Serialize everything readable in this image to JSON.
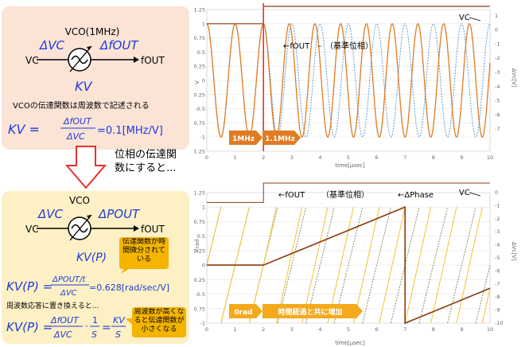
{
  "panel_top": {
    "vco_title": "VCO(1MHz)",
    "in_delta": "ΔVC",
    "out_delta": "ΔfOUT",
    "in_label": "VC",
    "out_label": "fOUT",
    "gain_symbol": "KV",
    "description": "VCOの伝達関数は周波数で記述される",
    "formula_lhs": "KV =",
    "formula_num": "ΔfOUT",
    "formula_den": "ΔVC",
    "formula_value": "=0.1[MHz/V]"
  },
  "middle": {
    "arrow_text": "位相の伝達関数にすると..."
  },
  "panel_bottom": {
    "vco_title": "VCO",
    "in_delta": "ΔVC",
    "out_delta": "ΔPOUT",
    "in_label": "VC",
    "out_label": "fOUT",
    "gain_symbol": "KV(P)",
    "callout_1": "伝達関数が時間微分されている",
    "formula1_lhs": "KV(P) =",
    "formula1_num": "ΔPOUT/t",
    "formula1_den": "ΔVC",
    "formula1_value": "=0.628[rad/sec/V]",
    "laplace_text": "周波数応答に置き換えると...",
    "formula2_lhs": "KV(P) =",
    "formula2_num": "ΔfOUT",
    "formula2_den": "ΔVC",
    "formula2_mid_num": "1",
    "formula2_mid_den": "S",
    "formula2_rhs_num": "KV",
    "formula2_rhs_den": "S",
    "callout_2": "周波数が高くなると伝達関数が小さくなる"
  },
  "chart_top": {
    "ylabel_left": "V",
    "ylabel_right": "ΔVc[V]",
    "xlabel": "time[μsec]",
    "left_ticks": [
      "1.25",
      "1",
      "0.75",
      "0.5",
      "0.25",
      "0",
      "-0.25",
      "-0.5",
      "-0.75",
      "-1",
      "-1.25"
    ],
    "right_ticks": [
      "1",
      "0",
      "-1",
      "-2",
      "-3",
      "-4",
      "-5",
      "-6",
      "-7"
    ],
    "x_ticks": [
      "0",
      "1",
      "2",
      "3",
      "4",
      "5",
      "6",
      "7",
      "8",
      "9",
      "10"
    ],
    "legend_fout": "fOUT",
    "legend_ref": "（基準位相）",
    "vc_label": "VC",
    "arrow1": "1MHz",
    "arrow2": "1.1MHz"
  },
  "chart_bottom": {
    "ylabel_left": "×rad",
    "ylabel_right": "ΔVc[V]",
    "xlabel": "time[μsec]",
    "left_ticks": [
      "1.25",
      "1",
      "0.75",
      "0.5",
      "0.25",
      "0",
      "-0.25",
      "-0.5",
      "-0.75",
      "-1"
    ],
    "right_ticks": [
      "0",
      "-1",
      "-2",
      "-3",
      "-4",
      "-5",
      "-6",
      "-7",
      "-8",
      "-9",
      "-10"
    ],
    "x_ticks": [
      "0",
      "1",
      "2",
      "3",
      "4",
      "5",
      "6",
      "7",
      "8",
      "9",
      "10"
    ],
    "legend_fout": "fOUT",
    "legend_ref": "（基準位相）",
    "legend_phase": "ΔPhase",
    "vc_label": "VC",
    "arrow1": "0rad",
    "arrow2": "時間経過と共に増加"
  },
  "colors": {
    "orange": "#e07b22",
    "blue": "#5b9bd5",
    "yellow": "#f3c331",
    "red": "#e8332a",
    "brown": "#8b3a0f",
    "olive": "#8a7a3a",
    "formula_blue": "#1f3ad8"
  },
  "chart_data": [
    {
      "type": "line",
      "title": "",
      "xlabel": "time[μsec]",
      "ylabel": "V",
      "xlim": [
        0,
        10
      ],
      "ylim": [
        -1.25,
        1.25
      ],
      "series": [
        {
          "name": "fOUT",
          "frequency_mhz_before": 1.0,
          "frequency_mhz_after": 1.1,
          "switch_time_usec": 2
        },
        {
          "name": "（基準位相）",
          "frequency_mhz": 1.0
        }
      ],
      "vc_step": {
        "before": 0,
        "after": 1,
        "time_usec": 2
      }
    },
    {
      "type": "line",
      "title": "",
      "xlabel": "time[μsec]",
      "ylabel": "×rad",
      "xlim": [
        0,
        10
      ],
      "ylim": [
        -1,
        1.25
      ],
      "series": [
        {
          "name": "fOUT",
          "kind": "phase sawtooth"
        },
        {
          "name": "（基準位相）",
          "kind": "phase sawtooth"
        },
        {
          "name": "ΔPhase",
          "points": [
            [
              0,
              0
            ],
            [
              2,
              0
            ],
            [
              7,
              1
            ],
            [
              7,
              -1
            ],
            [
              10,
              -0.4
            ]
          ]
        }
      ],
      "vc_step": {
        "before": 0,
        "after": 1,
        "time_usec": 2
      }
    }
  ]
}
